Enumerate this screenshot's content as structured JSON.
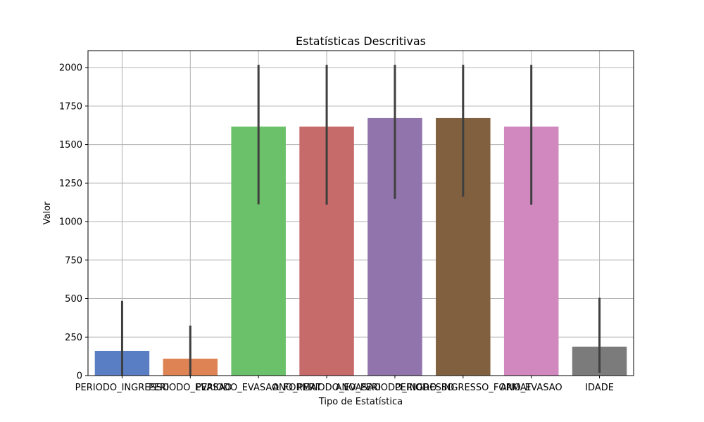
{
  "chart_data": {
    "type": "bar",
    "title": "Estatísticas Descritivas",
    "xlabel": "Tipo de Estatística",
    "ylabel": "Valor",
    "ylim": [
      0,
      2110
    ],
    "yticks": [
      0,
      250,
      500,
      750,
      1000,
      1250,
      1500,
      1750,
      2000
    ],
    "grid": true,
    "categories": [
      "PERIODO_INGRESSO",
      "PERIODO_EVASAO",
      "PERIODO_EVASAO_FORMAT",
      "ANO_PERIODO_EVASAO",
      "ANO_PERIODO_INGRESSO",
      "PERIODO_INGRESSO_FORMAT",
      "ANO_EVASAO",
      "IDADE"
    ],
    "values": [
      160,
      110,
      1617,
      1617,
      1672,
      1672,
      1617,
      188
    ],
    "error_low": [
      0,
      0,
      1112,
      1110,
      1147,
      1162,
      1110,
      18
    ],
    "error_high": [
      485,
      325,
      2018,
      2018,
      2018,
      2018,
      2018,
      505
    ],
    "colors": [
      "#5a7ec4",
      "#de8454",
      "#6ac16a",
      "#c66a6a",
      "#9274ad",
      "#80603f",
      "#d088be",
      "#7b7b7b"
    ]
  }
}
